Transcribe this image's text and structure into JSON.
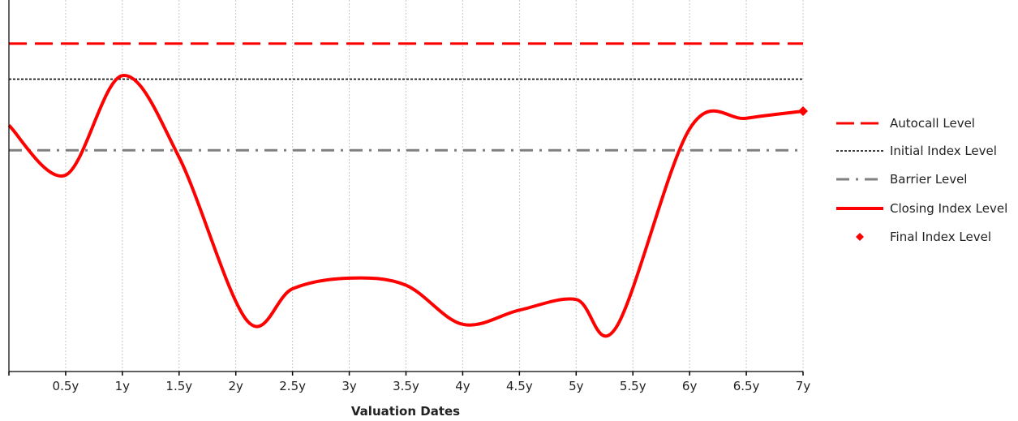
{
  "chart_data": {
    "type": "line",
    "xlabel": "Valuation Dates",
    "ylabel": "",
    "title": "",
    "x_ticks": [
      "0.5y",
      "1y",
      "1.5y",
      "2y",
      "2.5y",
      "3y",
      "3.5y",
      "4y",
      "4.5y",
      "5y",
      "5.5y",
      "6y",
      "6.5y",
      "7y"
    ],
    "x_range": [
      0,
      7
    ],
    "ylim": [
      0,
      100
    ],
    "grid": "vertical dotted",
    "legend_position": "right",
    "series": [
      {
        "name": "Autocall Level",
        "style": "dashed",
        "color": "#ff0000",
        "x": [
          0,
          7
        ],
        "y": [
          90,
          90
        ]
      },
      {
        "name": "Initial Index Level",
        "style": "dotted",
        "color": "#000000",
        "x": [
          0,
          7
        ],
        "y": [
          80,
          80
        ]
      },
      {
        "name": "Barrier Level",
        "style": "dash-dot",
        "color": "#808080",
        "x": [
          0,
          7
        ],
        "y": [
          60,
          60
        ]
      },
      {
        "name": "Closing Index Level",
        "style": "solid",
        "color": "#ff0000",
        "x": [
          0,
          0.5,
          1,
          1.5,
          2.1,
          2.5,
          3.0,
          3.5,
          4.0,
          4.5,
          5.0,
          5.35,
          6.0,
          6.5,
          7.0
        ],
        "y": [
          67,
          53,
          81,
          58,
          12,
          21,
          24,
          22,
          11,
          15,
          18,
          10,
          66,
          69,
          71
        ]
      },
      {
        "name": "Final Index Level",
        "style": "marker",
        "color": "#ff0000",
        "x": [
          7.0
        ],
        "y": [
          71
        ]
      }
    ],
    "colors": {
      "accent": "#ff0000",
      "barrier": "#808080",
      "initial": "#000000"
    }
  }
}
